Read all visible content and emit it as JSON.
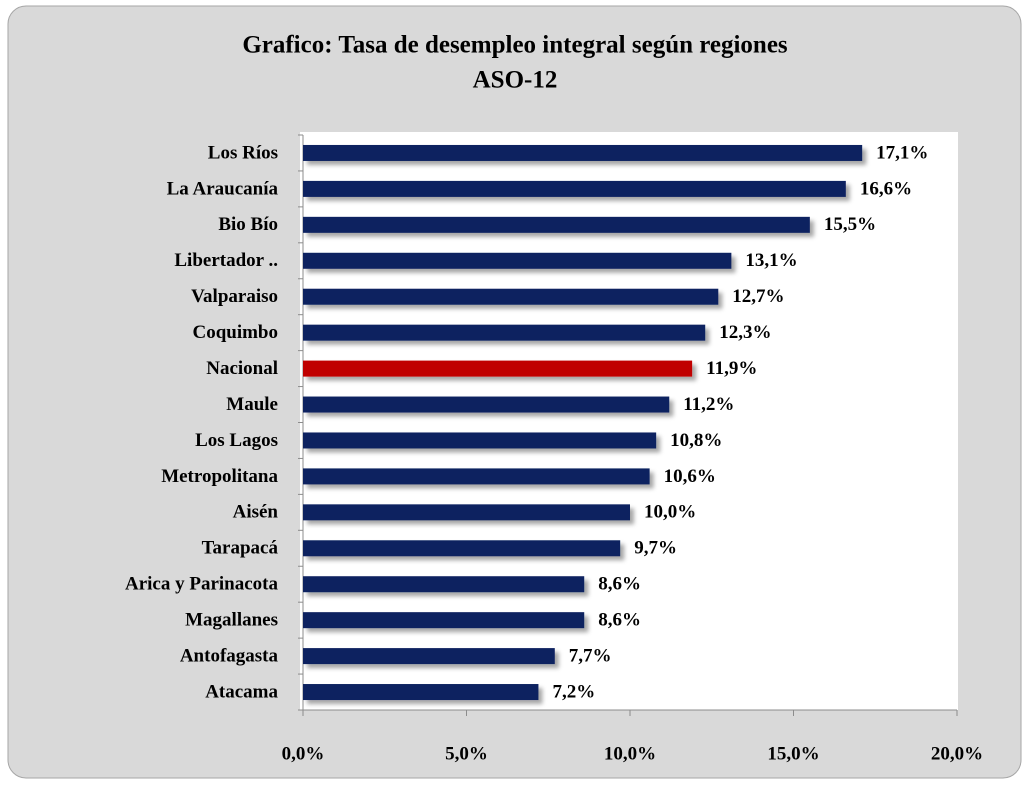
{
  "chart_data": {
    "type": "bar",
    "orientation": "horizontal",
    "title": "Grafico: Tasa de desempleo integral según regiones",
    "subtitle": "ASO-12",
    "categories": [
      "Los Ríos",
      "La Araucanía",
      "Bio Bío",
      "Libertador ..",
      "Valparaiso",
      "Coquimbo",
      "Nacional",
      "Maule",
      "Los Lagos",
      "Metropolitana",
      "Aisén",
      "Tarapacá",
      "Arica y Parinacota",
      "Magallanes",
      "Antofagasta",
      "Atacama"
    ],
    "values": [
      17.1,
      16.6,
      15.5,
      13.1,
      12.7,
      12.3,
      11.9,
      11.2,
      10.8,
      10.6,
      10.0,
      9.7,
      8.6,
      8.6,
      7.7,
      7.2
    ],
    "value_labels": [
      "17,1%",
      "16,6%",
      "15,5%",
      "13,1%",
      "12,7%",
      "12,3%",
      "11,9%",
      "11,2%",
      "10,8%",
      "10,6%",
      "10,0%",
      "9,7%",
      "8,6%",
      "8,6%",
      "7,7%",
      "7,2%"
    ],
    "colors": [
      "#0d2260",
      "#0d2260",
      "#0d2260",
      "#0d2260",
      "#0d2260",
      "#0d2260",
      "#c00000",
      "#0d2260",
      "#0d2260",
      "#0d2260",
      "#0d2260",
      "#0d2260",
      "#0d2260",
      "#0d2260",
      "#0d2260",
      "#0d2260"
    ],
    "xlim": [
      0,
      20
    ],
    "xticks": [
      {
        "value": 0,
        "label": "0,0%"
      },
      {
        "value": 5,
        "label": "5,0%"
      },
      {
        "value": 10,
        "label": "10,0%"
      },
      {
        "value": 15,
        "label": "15,0%"
      },
      {
        "value": 20,
        "label": "20,0%"
      }
    ],
    "grid": false
  }
}
